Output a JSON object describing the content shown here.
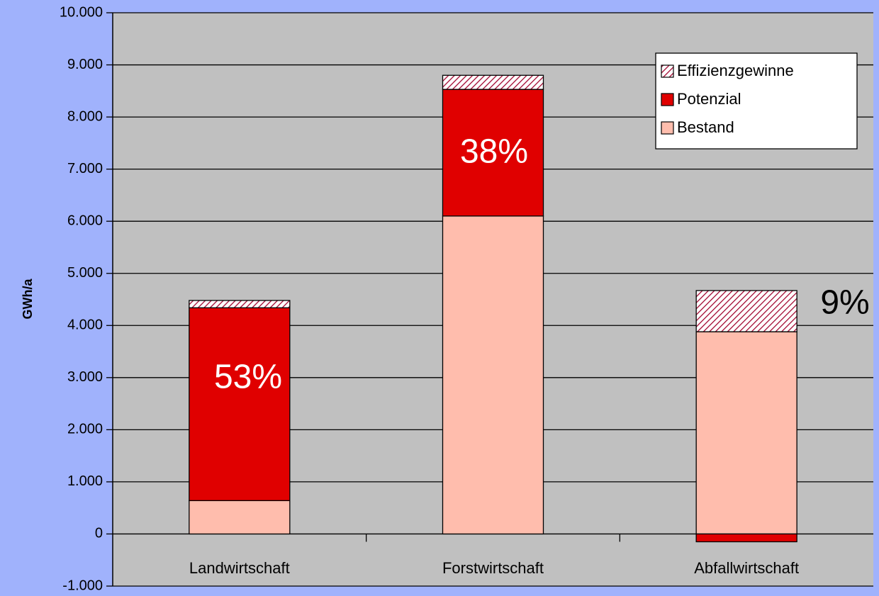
{
  "chart_data": {
    "type": "stacked_bar",
    "y_label": "GWh/a",
    "categories": [
      "Landwirtschaft",
      "Forstwirtschaft",
      "Abfallwirtschaft"
    ],
    "series": [
      {
        "name": "Bestand",
        "color": "#ffbdad",
        "values": [
          640,
          6100,
          3880
        ]
      },
      {
        "name": "Potenzial",
        "color": "#e00000",
        "values": [
          3700,
          2430,
          -150
        ]
      },
      {
        "name": "Effizienzgewinne",
        "color": "#a0002a",
        "pattern": "hatch",
        "values": [
          140,
          270,
          790
        ]
      }
    ],
    "annotations": [
      {
        "text": "53%",
        "color": "#ffffff"
      },
      {
        "text": "38%",
        "color": "#ffffff"
      },
      {
        "text": "9%",
        "color": "#000000"
      }
    ],
    "ylim": [
      -1000,
      10000
    ],
    "yticks": [
      {
        "value": -1000,
        "label": "-1.000"
      },
      0,
      {
        "value": 1000,
        "label": "1.000"
      },
      {
        "value": 2000,
        "label": "2.000"
      },
      {
        "value": 3000,
        "label": "3.000"
      },
      {
        "value": 4000,
        "label": "4.000"
      },
      {
        "value": 5000,
        "label": "5.000"
      },
      {
        "value": 6000,
        "label": "6.000"
      },
      {
        "value": 7000,
        "label": "7.000"
      },
      {
        "value": 8000,
        "label": "8.000"
      },
      {
        "value": 9000,
        "label": "9.000"
      },
      {
        "value": 10000,
        "label": "10.000"
      }
    ],
    "grid": true,
    "legend": "top-right",
    "plot_background": "#c0c0c0"
  }
}
